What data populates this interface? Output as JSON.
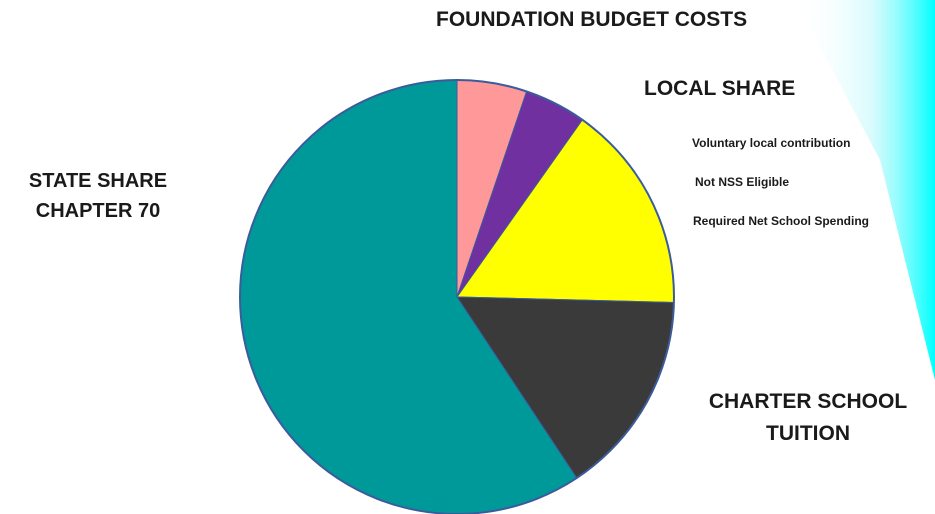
{
  "chart_data": {
    "type": "pie",
    "title": "FOUNDATION BUDGET COSTS",
    "group_label": "LOCAL SHARE",
    "slices": [
      {
        "label": "Voluntary local contribution",
        "value": 5.2,
        "color": "#FF9999"
      },
      {
        "label": "Not NSS Eligible",
        "value": 4.6,
        "color": "#7030A0"
      },
      {
        "label": "Required Net School Spending",
        "value": 15.6,
        "color": "#FFFF00"
      },
      {
        "label": "CHARTER SCHOOL TUITION",
        "value": 15.3,
        "color": "#3A3A3A"
      },
      {
        "label": "STATE SHARE CHAPTER 70",
        "value": 59.3,
        "color": "#009999"
      }
    ],
    "start_angle_deg": 0,
    "direction": "clockwise",
    "outline_color": "#3B5B9B"
  },
  "labels": {
    "title": "FOUNDATION BUDGET COSTS",
    "local_share": "LOCAL SHARE",
    "legend": [
      "Voluntary local contribution",
      "Not NSS Eligible",
      "Required Net School Spending"
    ],
    "state_share": [
      "STATE SHARE",
      "CHAPTER 70"
    ],
    "charter": [
      "CHARTER SCHOOL",
      "TUITION"
    ]
  },
  "theme": {
    "glow_color": "#00FFFF",
    "background": "#FFFFFF"
  }
}
